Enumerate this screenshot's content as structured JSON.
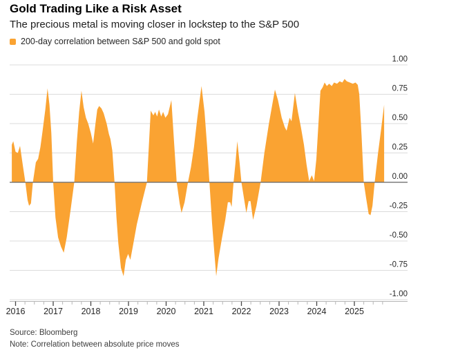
{
  "header": {
    "title": "Gold Trading Like a Risk Asset",
    "subtitle": "The precious metal is moving closer in lockstep to the S&P 500"
  },
  "legend": {
    "label": "200-day correlation between S&P 500 and gold spot",
    "swatch_color": "#FAA332"
  },
  "footer": {
    "source": "Source: Bloomberg",
    "note": "Note: Correlation between absolute price moves"
  },
  "colors": {
    "accent": "#FAA332",
    "grid": "#DBDBDB",
    "zero_line": "#6F6F6F",
    "axis_line": "#B5B5B5",
    "tick_major": "#444444",
    "tick_minor": "#B5B5B5",
    "axis_text": "#262626"
  },
  "chart_data": {
    "type": "area",
    "title": "Gold Trading Like a Risk Asset",
    "subtitle": "The precious metal is moving closer in lockstep to the S&P 500",
    "legend_position": "top-left",
    "grid": true,
    "baseline": 0,
    "xlabel": "",
    "ylabel": "",
    "xlim": [
      2015.85,
      2026.4
    ],
    "ylim": [
      -1.0,
      1.0
    ],
    "x_ticks": [
      2016,
      2017,
      2018,
      2019,
      2020,
      2021,
      2022,
      2023,
      2024,
      2025
    ],
    "x_tick_labels": [
      "2016",
      "2017",
      "2018",
      "2019",
      "2020",
      "2021",
      "2022",
      "2023",
      "2024",
      "2025"
    ],
    "x_minor_tick_interval": 0.25,
    "y_ticks": [
      1.0,
      0.75,
      0.5,
      0.25,
      0.0,
      -0.25,
      -0.5,
      -0.75,
      -1.0
    ],
    "y_tick_labels": [
      "1.00",
      "0.75",
      "0.50",
      "0.25",
      "0.00",
      "-0.25",
      "-0.50",
      "-0.75",
      "-1.00"
    ],
    "series": [
      {
        "name": "200-day correlation between S&P 500 and gold spot",
        "points": [
          [
            2015.9,
            0.32
          ],
          [
            2015.94,
            0.35
          ],
          [
            2016.0,
            0.26
          ],
          [
            2016.06,
            0.25
          ],
          [
            2016.12,
            0.31
          ],
          [
            2016.19,
            0.15
          ],
          [
            2016.26,
            0.0
          ],
          [
            2016.32,
            -0.15
          ],
          [
            2016.36,
            -0.2
          ],
          [
            2016.41,
            -0.18
          ],
          [
            2016.46,
            0.0
          ],
          [
            2016.54,
            0.17
          ],
          [
            2016.6,
            0.2
          ],
          [
            2016.66,
            0.3
          ],
          [
            2016.72,
            0.44
          ],
          [
            2016.79,
            0.62
          ],
          [
            2016.85,
            0.8
          ],
          [
            2016.9,
            0.66
          ],
          [
            2016.95,
            0.42
          ],
          [
            2017.0,
            0.0
          ],
          [
            2017.06,
            -0.3
          ],
          [
            2017.13,
            -0.47
          ],
          [
            2017.21,
            -0.55
          ],
          [
            2017.28,
            -0.6
          ],
          [
            2017.36,
            -0.47
          ],
          [
            2017.46,
            -0.24
          ],
          [
            2017.56,
            0.0
          ],
          [
            2017.63,
            0.35
          ],
          [
            2017.69,
            0.6
          ],
          [
            2017.75,
            0.78
          ],
          [
            2017.81,
            0.64
          ],
          [
            2017.87,
            0.55
          ],
          [
            2017.93,
            0.5
          ],
          [
            2018.0,
            0.42
          ],
          [
            2018.06,
            0.33
          ],
          [
            2018.12,
            0.49
          ],
          [
            2018.17,
            0.62
          ],
          [
            2018.22,
            0.65
          ],
          [
            2018.28,
            0.63
          ],
          [
            2018.34,
            0.59
          ],
          [
            2018.42,
            0.5
          ],
          [
            2018.48,
            0.41
          ],
          [
            2018.52,
            0.37
          ],
          [
            2018.57,
            0.27
          ],
          [
            2018.63,
            0.0
          ],
          [
            2018.68,
            -0.3
          ],
          [
            2018.73,
            -0.52
          ],
          [
            2018.8,
            -0.73
          ],
          [
            2018.87,
            -0.8
          ],
          [
            2018.93,
            -0.66
          ],
          [
            2018.99,
            -0.61
          ],
          [
            2019.05,
            -0.66
          ],
          [
            2019.12,
            -0.54
          ],
          [
            2019.22,
            -0.36
          ],
          [
            2019.35,
            -0.18
          ],
          [
            2019.49,
            0.0
          ],
          [
            2019.54,
            0.3
          ],
          [
            2019.59,
            0.61
          ],
          [
            2019.66,
            0.57
          ],
          [
            2019.71,
            0.6
          ],
          [
            2019.76,
            0.56
          ],
          [
            2019.81,
            0.62
          ],
          [
            2019.87,
            0.56
          ],
          [
            2019.92,
            0.6
          ],
          [
            2019.98,
            0.55
          ],
          [
            2020.05,
            0.58
          ],
          [
            2020.14,
            0.7
          ],
          [
            2020.21,
            0.35
          ],
          [
            2020.28,
            0.0
          ],
          [
            2020.36,
            -0.18
          ],
          [
            2020.41,
            -0.26
          ],
          [
            2020.49,
            -0.17
          ],
          [
            2020.58,
            0.0
          ],
          [
            2020.66,
            0.13
          ],
          [
            2020.74,
            0.3
          ],
          [
            2020.83,
            0.55
          ],
          [
            2020.94,
            0.82
          ],
          [
            2021.02,
            0.6
          ],
          [
            2021.09,
            0.3
          ],
          [
            2021.15,
            0.0
          ],
          [
            2021.22,
            -0.35
          ],
          [
            2021.28,
            -0.6
          ],
          [
            2021.33,
            -0.8
          ],
          [
            2021.39,
            -0.65
          ],
          [
            2021.48,
            -0.48
          ],
          [
            2021.57,
            -0.32
          ],
          [
            2021.64,
            -0.17
          ],
          [
            2021.7,
            -0.17
          ],
          [
            2021.74,
            -0.21
          ],
          [
            2021.79,
            0.0
          ],
          [
            2021.84,
            0.16
          ],
          [
            2021.89,
            0.35
          ],
          [
            2021.95,
            0.17
          ],
          [
            2022.0,
            0.0
          ],
          [
            2022.07,
            -0.14
          ],
          [
            2022.13,
            -0.26
          ],
          [
            2022.19,
            -0.16
          ],
          [
            2022.24,
            -0.16
          ],
          [
            2022.31,
            -0.32
          ],
          [
            2022.4,
            -0.2
          ],
          [
            2022.51,
            0.0
          ],
          [
            2022.61,
            0.25
          ],
          [
            2022.73,
            0.5
          ],
          [
            2022.83,
            0.68
          ],
          [
            2022.89,
            0.79
          ],
          [
            2022.97,
            0.7
          ],
          [
            2023.07,
            0.55
          ],
          [
            2023.15,
            0.47
          ],
          [
            2023.2,
            0.44
          ],
          [
            2023.28,
            0.55
          ],
          [
            2023.33,
            0.52
          ],
          [
            2023.42,
            0.76
          ],
          [
            2023.5,
            0.6
          ],
          [
            2023.58,
            0.47
          ],
          [
            2023.66,
            0.32
          ],
          [
            2023.73,
            0.15
          ],
          [
            2023.8,
            0.01
          ],
          [
            2023.87,
            0.06
          ],
          [
            2023.93,
            0.01
          ],
          [
            2023.99,
            0.2
          ],
          [
            2024.05,
            0.52
          ],
          [
            2024.1,
            0.78
          ],
          [
            2024.16,
            0.81
          ],
          [
            2024.21,
            0.85
          ],
          [
            2024.27,
            0.82
          ],
          [
            2024.33,
            0.84
          ],
          [
            2024.4,
            0.82
          ],
          [
            2024.46,
            0.85
          ],
          [
            2024.54,
            0.84
          ],
          [
            2024.61,
            0.86
          ],
          [
            2024.68,
            0.85
          ],
          [
            2024.74,
            0.88
          ],
          [
            2024.8,
            0.86
          ],
          [
            2024.88,
            0.85
          ],
          [
            2024.96,
            0.84
          ],
          [
            2025.03,
            0.85
          ],
          [
            2025.09,
            0.83
          ],
          [
            2025.13,
            0.75
          ],
          [
            2025.19,
            0.4
          ],
          [
            2025.25,
            0.0
          ],
          [
            2025.31,
            -0.13
          ],
          [
            2025.38,
            -0.27
          ],
          [
            2025.43,
            -0.28
          ],
          [
            2025.48,
            -0.2
          ],
          [
            2025.54,
            0.0
          ],
          [
            2025.63,
            0.25
          ],
          [
            2025.71,
            0.45
          ],
          [
            2025.79,
            0.66
          ]
        ]
      }
    ]
  }
}
